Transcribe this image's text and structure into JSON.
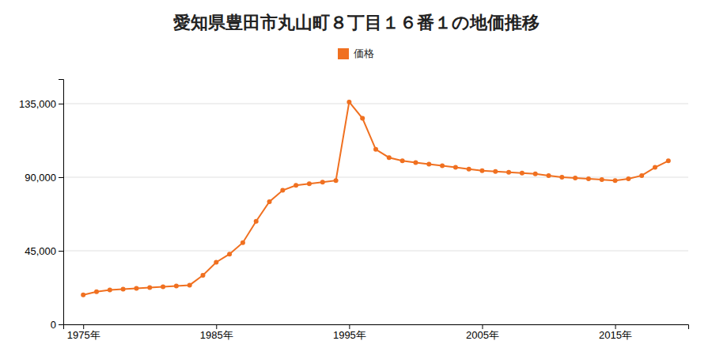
{
  "chart_data": {
    "type": "line",
    "title": "愛知県豊田市丸山町８丁目１６番１の地価推移",
    "x": [
      1975,
      1976,
      1977,
      1978,
      1979,
      1980,
      1981,
      1982,
      1983,
      1984,
      1985,
      1986,
      1987,
      1988,
      1989,
      1990,
      1991,
      1992,
      1993,
      1994,
      1995,
      1996,
      1997,
      1998,
      1999,
      2000,
      2001,
      2002,
      2003,
      2004,
      2005,
      2006,
      2007,
      2008,
      2009,
      2010,
      2011,
      2012,
      2013,
      2014,
      2015,
      2016,
      2017,
      2018,
      2019
    ],
    "series": [
      {
        "name": "価格",
        "color": "#f07020",
        "marker": "circle",
        "values": [
          18000,
          20000,
          21000,
          21500,
          22000,
          22500,
          23000,
          23500,
          24000,
          30000,
          38000,
          43000,
          50000,
          63000,
          75000,
          82000,
          85000,
          86000,
          87000,
          88000,
          136000,
          126000,
          107000,
          102000,
          100000,
          99000,
          98000,
          97000,
          96000,
          95000,
          94000,
          93500,
          93000,
          92500,
          92000,
          91000,
          90000,
          89500,
          89000,
          88500,
          88000,
          89000,
          91000,
          96000,
          100000
        ]
      }
    ],
    "xlim": [
      1973.5,
      2020.5
    ],
    "xticks": [
      {
        "value": 1975,
        "label": "1975年"
      },
      {
        "value": 1985,
        "label": "1985年"
      },
      {
        "value": 1995,
        "label": "1995年"
      },
      {
        "value": 2005,
        "label": "2005年"
      },
      {
        "value": 2015,
        "label": "2015年"
      }
    ],
    "ylim": [
      0,
      150000
    ],
    "yticks": [
      0,
      {
        "value": 45000,
        "label": "45,000"
      },
      {
        "value": 90000,
        "label": "90,000"
      },
      {
        "value": 135000,
        "label": "135,000"
      }
    ],
    "grid": true,
    "legend": "top"
  }
}
